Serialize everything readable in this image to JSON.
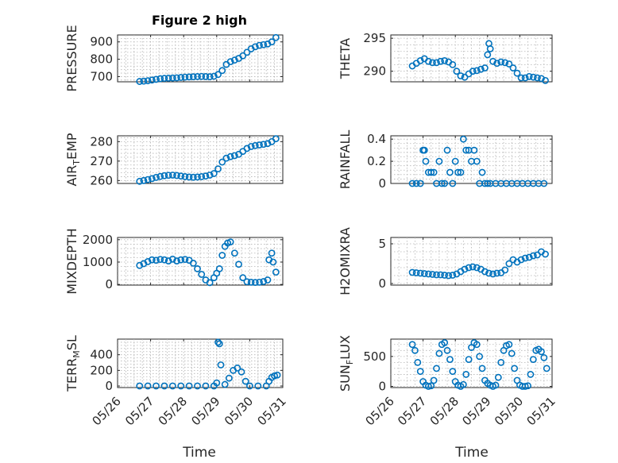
{
  "figure": {
    "title": "Figure 2 high",
    "xlabel": "Time",
    "marker_color": "#0072BD"
  },
  "chart_data": [
    {
      "type": "scatter",
      "ylabel": "PRESSURE",
      "ylim": [
        670,
        940
      ],
      "yticks": [
        700,
        800,
        900
      ],
      "xlim": [
        "05/26",
        "05/31"
      ],
      "xticks": [
        "05/26",
        "05/27",
        "05/28",
        "05/29",
        "05/30",
        "05/31"
      ],
      "x": [
        "05/26 16:00",
        "05/26 19:00",
        "05/26 22:00",
        "05/27 01:00",
        "05/27 04:00",
        "05/27 07:00",
        "05/27 10:00",
        "05/27 13:00",
        "05/27 16:00",
        "05/27 19:00",
        "05/27 22:00",
        "05/28 01:00",
        "05/28 04:00",
        "05/28 07:00",
        "05/28 10:00",
        "05/28 13:00",
        "05/28 16:00",
        "05/28 19:00",
        "05/28 22:00",
        "05/29 01:00",
        "05/29 04:00",
        "05/29 07:00",
        "05/29 10:00",
        "05/29 13:00",
        "05/29 16:00",
        "05/29 19:00",
        "05/29 22:00",
        "05/30 01:00",
        "05/30 04:00",
        "05/30 07:00",
        "05/30 10:00",
        "05/30 13:00",
        "05/30 16:00",
        "05/30 19:00"
      ],
      "y": [
        672,
        674,
        676,
        680,
        684,
        688,
        690,
        691,
        692,
        693,
        695,
        697,
        698,
        699,
        700,
        701,
        700,
        699,
        702,
        712,
        735,
        770,
        786,
        795,
        805,
        820,
        840,
        860,
        872,
        880,
        884,
        888,
        900,
        925
      ]
    },
    {
      "type": "scatter",
      "ylabel": "THETA",
      "ylim": [
        288.4,
        295.5
      ],
      "yticks": [
        290,
        295
      ],
      "xlim": [
        "05/26",
        "05/31"
      ],
      "xticks": [
        "05/26",
        "05/27",
        "05/28",
        "05/29",
        "05/30",
        "05/31"
      ],
      "x": [
        "05/26 16:00",
        "05/26 19:00",
        "05/26 22:00",
        "05/27 01:00",
        "05/27 04:00",
        "05/27 07:00",
        "05/27 10:00",
        "05/27 13:00",
        "05/27 16:00",
        "05/27 19:00",
        "05/27 22:00",
        "05/28 01:00",
        "05/28 04:00",
        "05/28 07:00",
        "05/28 10:00",
        "05/28 13:00",
        "05/28 16:00",
        "05/28 19:00",
        "05/28 22:00",
        "05/29 00:00",
        "05/29 01:00",
        "05/29 02:00",
        "05/29 04:00",
        "05/29 07:00",
        "05/29 10:00",
        "05/29 13:00",
        "05/29 16:00",
        "05/29 19:00",
        "05/29 22:00",
        "05/30 01:00",
        "05/30 04:00",
        "05/30 07:00",
        "05/30 10:00",
        "05/30 13:00",
        "05/30 16:00",
        "05/30 19:00"
      ],
      "y": [
        290.8,
        291.2,
        291.6,
        291.9,
        291.5,
        291.3,
        291.3,
        291.5,
        291.6,
        291.4,
        291.0,
        290.0,
        289.3,
        289.1,
        289.6,
        290.0,
        290.1,
        290.3,
        290.5,
        292.5,
        294.2,
        293.4,
        291.5,
        291.2,
        291.4,
        291.3,
        291.1,
        290.5,
        289.7,
        289.0,
        289.0,
        289.2,
        289.1,
        289.0,
        288.9,
        288.6
      ]
    },
    {
      "type": "scatter",
      "ylabel": "AIR_TEMP",
      "ylim": [
        258.5,
        283
      ],
      "yticks": [
        260,
        270,
        280
      ],
      "xlim": [
        "05/26",
        "05/31"
      ],
      "xticks": [
        "05/26",
        "05/27",
        "05/28",
        "05/29",
        "05/30",
        "05/31"
      ],
      "x": [
        "05/26 16:00",
        "05/26 19:00",
        "05/26 22:00",
        "05/27 01:00",
        "05/27 04:00",
        "05/27 07:00",
        "05/27 10:00",
        "05/27 13:00",
        "05/27 16:00",
        "05/27 19:00",
        "05/27 22:00",
        "05/28 01:00",
        "05/28 04:00",
        "05/28 07:00",
        "05/28 10:00",
        "05/28 13:00",
        "05/28 16:00",
        "05/28 19:00",
        "05/28 22:00",
        "05/29 01:00",
        "05/29 04:00",
        "05/29 07:00",
        "05/29 10:00",
        "05/29 13:00",
        "05/29 16:00",
        "05/29 19:00",
        "05/29 22:00",
        "05/30 01:00",
        "05/30 04:00",
        "05/30 07:00",
        "05/30 10:00",
        "05/30 13:00",
        "05/30 16:00",
        "05/30 19:00"
      ],
      "y": [
        259.6,
        260.0,
        260.5,
        261.0,
        261.6,
        262.1,
        262.5,
        262.7,
        262.8,
        262.6,
        262.3,
        262.0,
        261.8,
        261.7,
        261.8,
        262.0,
        262.3,
        262.8,
        263.6,
        266.0,
        269.5,
        271.5,
        272.3,
        272.8,
        273.5,
        275.0,
        276.5,
        277.5,
        278.0,
        278.3,
        278.6,
        279.0,
        280.0,
        281.5
      ]
    },
    {
      "type": "scatter",
      "ylabel": "RAINFALL",
      "ylim": [
        0,
        0.43
      ],
      "yticks": [
        0,
        0.2,
        0.4
      ],
      "xlim": [
        "05/26",
        "05/31"
      ],
      "xticks": [
        "05/26",
        "05/27",
        "05/28",
        "05/29",
        "05/30",
        "05/31"
      ],
      "x": [
        "05/26 16:00",
        "05/26 19:00",
        "05/26 22:00",
        "05/27 00:00",
        "05/27 01:00",
        "05/27 02:00",
        "05/27 04:00",
        "05/27 06:00",
        "05/27 08:00",
        "05/27 10:00",
        "05/27 12:00",
        "05/27 14:00",
        "05/27 16:00",
        "05/27 18:00",
        "05/27 20:00",
        "05/27 22:00",
        "05/28 00:00",
        "05/28 02:00",
        "05/28 04:00",
        "05/28 06:00",
        "05/28 08:00",
        "05/28 10:00",
        "05/28 12:00",
        "05/28 14:00",
        "05/28 16:00",
        "05/28 18:00",
        "05/28 20:00",
        "05/28 22:00",
        "05/29 00:00",
        "05/29 02:00",
        "05/29 06:00",
        "05/29 10:00",
        "05/29 14:00",
        "05/29 18:00",
        "05/29 22:00",
        "05/30 02:00",
        "05/30 06:00",
        "05/30 10:00",
        "05/30 14:00",
        "05/30 18:00"
      ],
      "y": [
        0,
        0,
        0,
        0.3,
        0.3,
        0.2,
        0.1,
        0.1,
        0.1,
        0,
        0.2,
        0,
        0,
        0.3,
        0.1,
        0,
        0.2,
        0.1,
        0.1,
        0.4,
        0.3,
        0.3,
        0.2,
        0.3,
        0.2,
        0,
        0.1,
        0,
        0,
        0,
        0,
        0,
        0,
        0,
        0,
        0,
        0,
        0,
        0,
        0
      ]
    },
    {
      "type": "scatter",
      "ylabel": "MIXDEPTH",
      "ylim": [
        -30,
        2100
      ],
      "yticks": [
        0,
        1000,
        2000
      ],
      "xlim": [
        "05/26",
        "05/31"
      ],
      "xticks": [
        "05/26",
        "05/27",
        "05/28",
        "05/29",
        "05/30",
        "05/31"
      ],
      "x": [
        "05/26 16:00",
        "05/26 19:00",
        "05/26 22:00",
        "05/27 01:00",
        "05/27 04:00",
        "05/27 07:00",
        "05/27 10:00",
        "05/27 13:00",
        "05/27 16:00",
        "05/27 19:00",
        "05/27 22:00",
        "05/28 01:00",
        "05/28 04:00",
        "05/28 07:00",
        "05/28 10:00",
        "05/28 13:00",
        "05/28 16:00",
        "05/28 19:00",
        "05/28 22:00",
        "05/29 00:00",
        "05/29 02:00",
        "05/29 04:00",
        "05/29 06:00",
        "05/29 08:00",
        "05/29 10:00",
        "05/29 13:00",
        "05/29 16:00",
        "05/29 19:00",
        "05/29 22:00",
        "05/30 01:00",
        "05/30 04:00",
        "05/30 07:00",
        "05/30 10:00",
        "05/30 13:00",
        "05/30 14:00",
        "05/30 16:00",
        "05/30 17:00",
        "05/30 19:00"
      ],
      "y": [
        850,
        930,
        1020,
        1100,
        1080,
        1120,
        1100,
        1050,
        1130,
        1050,
        1100,
        1120,
        1080,
        950,
        700,
        450,
        200,
        80,
        300,
        500,
        700,
        1300,
        1700,
        1850,
        1900,
        1400,
        900,
        300,
        120,
        100,
        90,
        100,
        130,
        200,
        1100,
        1400,
        1000,
        550
      ]
    },
    {
      "type": "scatter",
      "ylabel": "H2OMIXRA",
      "ylim": [
        -0.2,
        5.8
      ],
      "yticks": [
        0,
        5
      ],
      "xlim": [
        "05/26",
        "05/31"
      ],
      "xticks": [
        "05/26",
        "05/27",
        "05/28",
        "05/29",
        "05/30",
        "05/31"
      ],
      "x": [
        "05/26 16:00",
        "05/26 19:00",
        "05/26 22:00",
        "05/27 01:00",
        "05/27 04:00",
        "05/27 07:00",
        "05/27 10:00",
        "05/27 13:00",
        "05/27 16:00",
        "05/27 19:00",
        "05/27 22:00",
        "05/28 01:00",
        "05/28 04:00",
        "05/28 07:00",
        "05/28 10:00",
        "05/28 13:00",
        "05/28 16:00",
        "05/28 19:00",
        "05/28 22:00",
        "05/29 01:00",
        "05/29 04:00",
        "05/29 07:00",
        "05/29 10:00",
        "05/29 13:00",
        "05/29 16:00",
        "05/29 19:00",
        "05/29 22:00",
        "05/30 01:00",
        "05/30 04:00",
        "05/30 07:00",
        "05/30 10:00",
        "05/30 13:00",
        "05/30 16:00",
        "05/30 19:00"
      ],
      "y": [
        1.4,
        1.35,
        1.3,
        1.25,
        1.2,
        1.15,
        1.1,
        1.1,
        1.05,
        1.0,
        1.05,
        1.2,
        1.5,
        1.8,
        2.0,
        2.1,
        2.0,
        1.8,
        1.5,
        1.3,
        1.2,
        1.3,
        1.35,
        1.7,
        2.5,
        3.0,
        2.7,
        3.0,
        3.2,
        3.3,
        3.5,
        3.6,
        4.0,
        3.7
      ]
    },
    {
      "type": "scatter",
      "ylabel": "TERR_MSL",
      "ylim": [
        -20,
        600
      ],
      "yticks": [
        0,
        200,
        400
      ],
      "xlim": [
        "05/26",
        "05/31"
      ],
      "xticks": [
        "05/26",
        "05/27",
        "05/28",
        "05/29",
        "05/30",
        "05/31"
      ],
      "x": [
        "05/26 16:00",
        "05/26 22:00",
        "05/27 04:00",
        "05/27 10:00",
        "05/27 16:00",
        "05/27 22:00",
        "05/28 04:00",
        "05/28 10:00",
        "05/28 16:00",
        "05/28 22:00",
        "05/29 00:00",
        "05/29 01:00",
        "05/29 02:00",
        "05/29 03:00",
        "05/29 06:00",
        "05/29 09:00",
        "05/29 12:00",
        "05/29 15:00",
        "05/29 18:00",
        "05/29 21:00",
        "05/30 00:00",
        "05/30 06:00",
        "05/30 12:00",
        "05/30 14:00",
        "05/30 16:00",
        "05/30 18:00",
        "05/30 20:00"
      ],
      "y": [
        0,
        0,
        0,
        0,
        0,
        0,
        0,
        0,
        0,
        0,
        40,
        560,
        540,
        270,
        20,
        100,
        200,
        230,
        180,
        60,
        0,
        0,
        0,
        60,
        110,
        130,
        140
      ]
    },
    {
      "type": "scatter",
      "ylabel": "SUN_FLUX",
      "ylim": [
        -20,
        790
      ],
      "yticks": [
        0,
        500
      ],
      "xlim": [
        "05/26",
        "05/31"
      ],
      "xticks": [
        "05/26",
        "05/27",
        "05/28",
        "05/29",
        "05/30",
        "05/31"
      ],
      "x": [
        "05/26 16:00",
        "05/26 18:00",
        "05/26 20:00",
        "05/26 22:00",
        "05/27 00:00",
        "05/27 02:00",
        "05/27 04:00",
        "05/27 06:00",
        "05/27 08:00",
        "05/27 10:00",
        "05/27 12:00",
        "05/27 14:00",
        "05/27 16:00",
        "05/27 18:00",
        "05/27 20:00",
        "05/27 22:00",
        "05/28 00:00",
        "05/28 02:00",
        "05/28 04:00",
        "05/28 06:00",
        "05/28 08:00",
        "05/28 10:00",
        "05/28 12:00",
        "05/28 14:00",
        "05/28 16:00",
        "05/28 18:00",
        "05/28 20:00",
        "05/28 22:00",
        "05/29 00:00",
        "05/29 02:00",
        "05/29 04:00",
        "05/29 06:00",
        "05/29 08:00",
        "05/29 10:00",
        "05/29 12:00",
        "05/29 14:00",
        "05/29 16:00",
        "05/29 18:00",
        "05/29 20:00",
        "05/29 22:00",
        "05/30 00:00",
        "05/30 02:00",
        "05/30 04:00",
        "05/30 06:00",
        "05/30 08:00",
        "05/30 10:00",
        "05/30 12:00",
        "05/30 14:00",
        "05/30 16:00",
        "05/30 18:00",
        "05/30 20:00"
      ],
      "y": [
        700,
        600,
        400,
        250,
        80,
        20,
        0,
        10,
        100,
        300,
        550,
        700,
        730,
        600,
        450,
        250,
        80,
        20,
        0,
        30,
        200,
        450,
        650,
        730,
        700,
        500,
        300,
        100,
        50,
        20,
        0,
        20,
        150,
        400,
        600,
        680,
        700,
        550,
        300,
        100,
        20,
        0,
        0,
        10,
        200,
        450,
        600,
        620,
        580,
        480,
        300
      ]
    }
  ]
}
